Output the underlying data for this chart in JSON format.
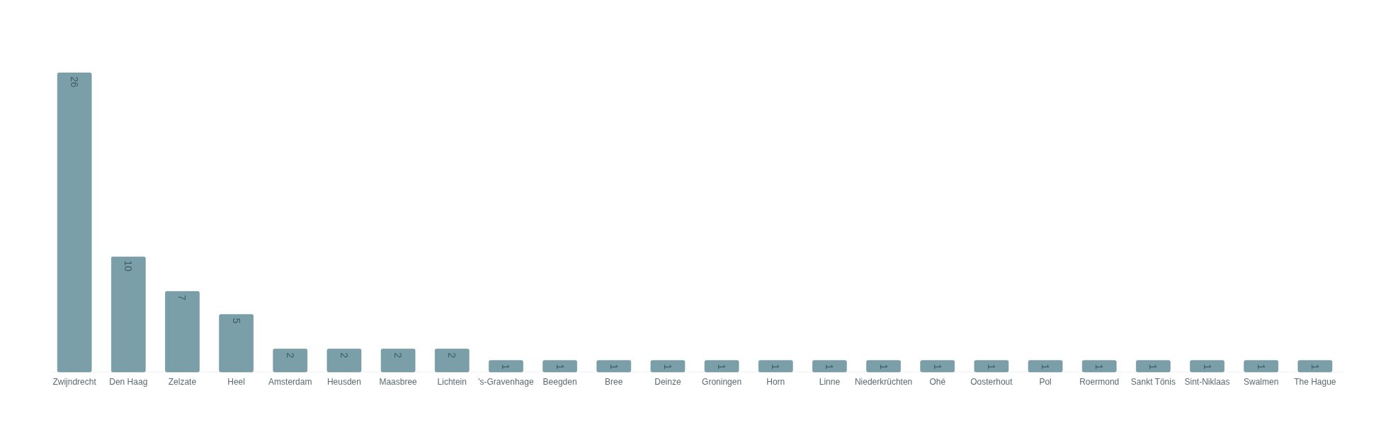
{
  "chart_data": {
    "type": "bar",
    "categories": [
      "Zwijndrecht",
      "Den Haag",
      "Zelzate",
      "Heel",
      "Amsterdam",
      "Heusden",
      "Maasbree",
      "Lichtein",
      "'s-Gravenhage",
      "Beegden",
      "Bree",
      "Deinze",
      "Groningen",
      "Horn",
      "Linne",
      "Niederkrüchten",
      "Ohé",
      "Oosterhout",
      "Pol",
      "Roermond",
      "Sankt Tönis",
      "Sint-Niklaas",
      "Swalmen",
      "The Hague"
    ],
    "values": [
      26,
      10,
      7,
      5,
      2,
      2,
      2,
      2,
      1,
      1,
      1,
      1,
      1,
      1,
      1,
      1,
      1,
      1,
      1,
      1,
      1,
      1,
      1,
      1
    ],
    "color": "#7a9fa9",
    "data_labels": true
  }
}
